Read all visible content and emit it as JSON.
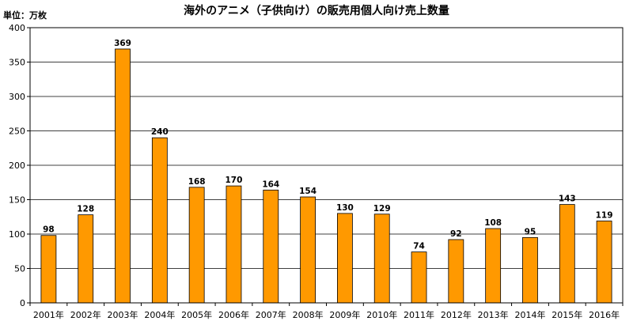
{
  "chart_data": {
    "type": "bar",
    "title": "海外のアニメ（子供向け）の販売用個人向け売上数量",
    "unit_label": "単位：万枚",
    "categories": [
      "2001年",
      "2002年",
      "2003年",
      "2004年",
      "2005年",
      "2006年",
      "2007年",
      "2008年",
      "2009年",
      "2010年",
      "2011年",
      "2012年",
      "2013年",
      "2014年",
      "2015年",
      "2016年"
    ],
    "series": [
      {
        "values": [
          98,
          128,
          369,
          240,
          168,
          170,
          164,
          154,
          130,
          129,
          74,
          92,
          108,
          95,
          143,
          119
        ]
      }
    ],
    "data_labels": [
      "98",
      "128",
      "369",
      "240",
      "168",
      "170",
      "164",
      "154",
      "130",
      "129",
      "74",
      "92",
      "108",
      "95",
      "143",
      "119"
    ],
    "y_ticks": [
      "0",
      "50",
      "100",
      "150",
      "200",
      "250",
      "300",
      "350",
      "400"
    ],
    "ylim": [
      0,
      400
    ],
    "grid": true,
    "bar_color": "#FF9900",
    "bar_edge_color": "#000000"
  }
}
